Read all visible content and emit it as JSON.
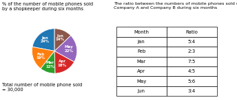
{
  "chart_data": [
    {
      "type": "pie",
      "title": "% of the number of mobile phones sold\nby a shopkeeper during six months",
      "categories": [
        "Jan",
        "Feb",
        "Mar",
        "Apr",
        "May",
        "Jun"
      ],
      "values": [
        24,
        19,
        12,
        18,
        22,
        14
      ],
      "value_labels": [
        "24%",
        "19%",
        "12%",
        "18%",
        "22%",
        "14%"
      ],
      "data_labels": true,
      "annotations": [
        "Total number of mobile phone sold\n= 30,000"
      ]
    },
    {
      "type": "table",
      "title": "The ratio between the numbers of mobile phones sold of\nCompany A and Company B during six months",
      "columns": [
        "Month",
        "Ratio"
      ],
      "rows": [
        [
          "Jan",
          "5:4"
        ],
        [
          "Feb",
          "2:3"
        ],
        [
          "Mar",
          "7:5"
        ],
        [
          "Apr",
          "4:5"
        ],
        [
          "May",
          "5:6"
        ],
        [
          "Jun",
          "3:4"
        ]
      ]
    }
  ]
}
